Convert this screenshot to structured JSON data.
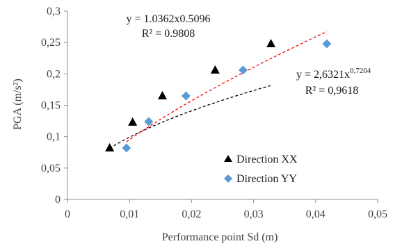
{
  "chart_data": {
    "type": "scatter",
    "xlabel": "Performance point Sd (m)",
    "ylabel": "PGA (m/s²)",
    "xlim": [
      0,
      0.05
    ],
    "ylim": [
      0,
      0.3
    ],
    "x_ticks": [
      "0",
      "0,01",
      "0,02",
      "0,03",
      "0,04",
      "0,05"
    ],
    "y_ticks": [
      "0",
      "0,05",
      "0,1",
      "0,15",
      "0,2",
      "0,25",
      "0,3"
    ],
    "x_tick_values": [
      0,
      0.01,
      0.02,
      0.03,
      0.04,
      0.05
    ],
    "y_tick_values": [
      0,
      0.05,
      0.1,
      0.15,
      0.2,
      0.25,
      0.3
    ],
    "grid": false,
    "legend_position": "bottom-right",
    "series": [
      {
        "name": "Direction XX",
        "marker": "triangle",
        "color": "#000000",
        "x": [
          0.0068,
          0.0105,
          0.0153,
          0.0238,
          0.0328
        ],
        "y": [
          0.082,
          0.123,
          0.165,
          0.206,
          0.248
        ],
        "trendline": {
          "equation_line1": "y = 1.0362x0.5096",
          "equation_line2": "R² = 0.9808",
          "coef": 1.0362,
          "exp": 0.5096,
          "x_range": [
            0.0068,
            0.0328
          ],
          "color": "#000000"
        }
      },
      {
        "name": "Direction YY",
        "marker": "diamond",
        "color": "#5b9bd5",
        "x": [
          0.0095,
          0.0131,
          0.0191,
          0.0283,
          0.0418
        ],
        "y": [
          0.082,
          0.124,
          0.165,
          0.206,
          0.248
        ],
        "trendline": {
          "equation_base": "y = 2,6321x",
          "equation_exp": "0,7204",
          "equation_line2": "R² = 0,9618",
          "coef": 2.6321,
          "exp": 0.7204,
          "x_range": [
            0.0095,
            0.0418
          ],
          "color": "#ff0000"
        }
      }
    ]
  }
}
